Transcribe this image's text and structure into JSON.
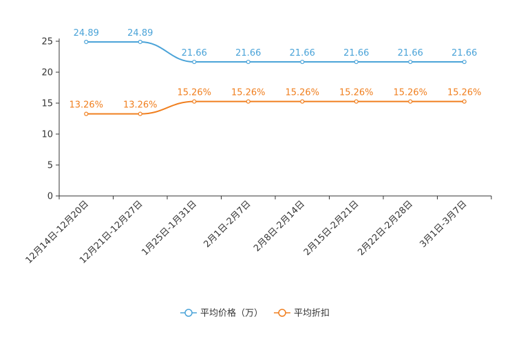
{
  "chart_data": {
    "type": "line",
    "title": "",
    "xlabel": "",
    "ylabel": "",
    "ylim": [
      0,
      25
    ],
    "yticks": [
      0,
      5,
      10,
      15,
      20,
      25
    ],
    "categories": [
      "12月14日-12月20日",
      "12月21日-12月27日",
      "1月25日-1月31日",
      "2月1日-2月7日",
      "2月8日-2月14日",
      "2月15日-2月21日",
      "2月22日-2月28日",
      "3月1日-3月7日"
    ],
    "series": [
      {
        "name": "平均价格（万）",
        "color": "#4aa3d8",
        "values": [
          24.89,
          24.89,
          21.66,
          21.66,
          21.66,
          21.66,
          21.66,
          21.66
        ],
        "labels": [
          "24.89",
          "24.89",
          "21.66",
          "21.66",
          "21.66",
          "21.66",
          "21.66",
          "21.66"
        ]
      },
      {
        "name": "平均折扣",
        "color": "#f07f1f",
        "values": [
          13.26,
          13.26,
          15.26,
          15.26,
          15.26,
          15.26,
          15.26,
          15.26
        ],
        "labels": [
          "13.26%",
          "13.26%",
          "15.26%",
          "15.26%",
          "15.26%",
          "15.26%",
          "15.26%",
          "15.26%"
        ]
      }
    ],
    "legend_position": "bottom-center",
    "grid": false
  }
}
